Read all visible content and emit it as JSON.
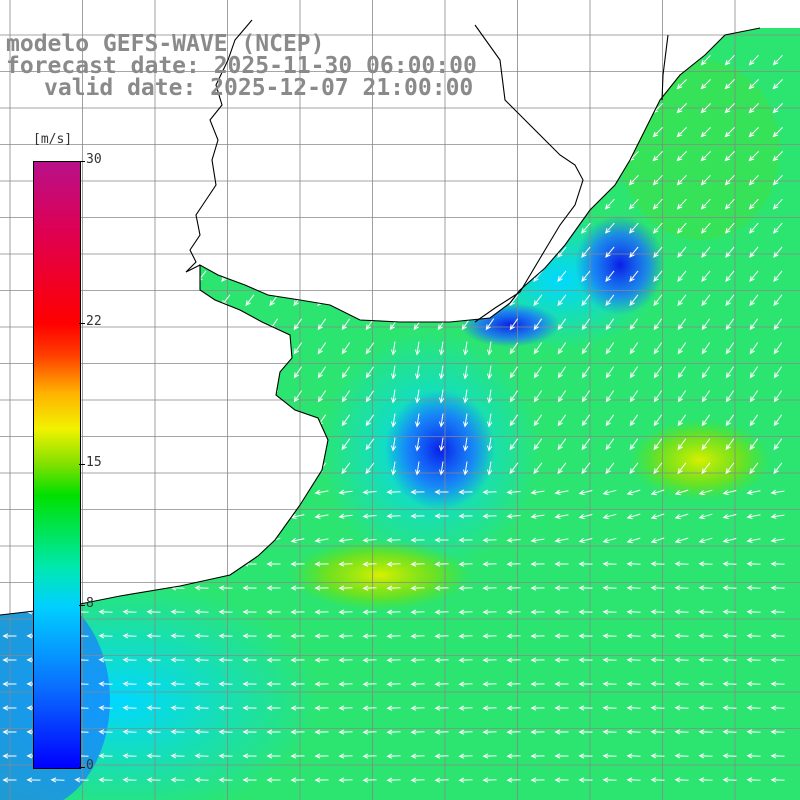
{
  "title": {
    "line1": "modelo GEFS-WAVE (NCEP)",
    "line2": "forecast date: 2025-11-30 06:00:00",
    "line3": "valid date: 2025-12-07 21:00:00"
  },
  "colorbar": {
    "unit": "[m/s]",
    "min": 0,
    "max": 30,
    "ticks": [
      {
        "value": 0,
        "label": "0"
      },
      {
        "value": 8,
        "label": "8"
      },
      {
        "value": 15,
        "label": "15"
      },
      {
        "value": 22,
        "label": "22"
      },
      {
        "value": 30,
        "label": "30"
      }
    ]
  },
  "colors": {
    "land": "#ffffff",
    "coastline": "#000000",
    "grid": "#888888",
    "arrow": "#ffffff",
    "text": "#8a8a8a"
  },
  "map": {
    "variable": "wind speed and direction",
    "region": "South Atlantic, off southern Brazil / Uruguay / Argentina"
  }
}
